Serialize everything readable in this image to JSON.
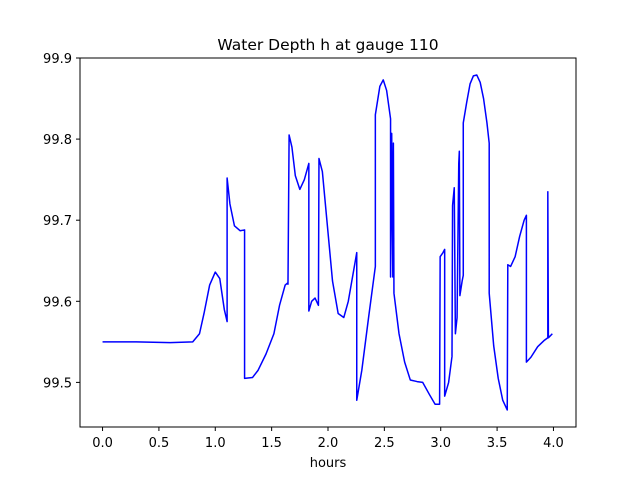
{
  "chart_data": {
    "type": "line",
    "title": "Water Depth h at gauge 110",
    "xlabel": "hours",
    "ylabel": "",
    "xlim": [
      -0.2,
      4.2
    ],
    "ylim": [
      99.445,
      99.9
    ],
    "xticks": [
      0.0,
      0.5,
      1.0,
      1.5,
      2.0,
      2.5,
      3.0,
      3.5,
      4.0
    ],
    "xtick_labels": [
      "0.0",
      "0.5",
      "1.0",
      "1.5",
      "2.0",
      "2.5",
      "3.0",
      "3.5",
      "4.0"
    ],
    "yticks": [
      99.5,
      99.6,
      99.7,
      99.8,
      99.9
    ],
    "ytick_labels": [
      "99.5",
      "99.6",
      "99.7",
      "99.8",
      "99.9"
    ],
    "grid": false,
    "series": [
      {
        "color": "#0000ff",
        "points": [
          [
            0.0,
            99.55
          ],
          [
            0.3,
            99.55
          ],
          [
            0.6,
            99.549
          ],
          [
            0.8,
            99.55
          ],
          [
            0.86,
            99.56
          ],
          [
            0.9,
            99.585
          ],
          [
            0.95,
            99.62
          ],
          [
            1.0,
            99.636
          ],
          [
            1.04,
            99.628
          ],
          [
            1.08,
            99.59
          ],
          [
            1.105,
            99.575
          ],
          [
            1.105,
            99.752
          ],
          [
            1.13,
            99.72
          ],
          [
            1.17,
            99.693
          ],
          [
            1.22,
            99.687
          ],
          [
            1.26,
            99.688
          ],
          [
            1.26,
            99.505
          ],
          [
            1.33,
            99.506
          ],
          [
            1.38,
            99.515
          ],
          [
            1.45,
            99.535
          ],
          [
            1.52,
            99.56
          ],
          [
            1.57,
            99.595
          ],
          [
            1.62,
            99.62
          ],
          [
            1.645,
            99.623
          ],
          [
            1.645,
            99.621
          ],
          [
            1.655,
            99.805
          ],
          [
            1.68,
            99.79
          ],
          [
            1.71,
            99.755
          ],
          [
            1.75,
            99.738
          ],
          [
            1.79,
            99.75
          ],
          [
            1.83,
            99.77
          ],
          [
            1.83,
            99.588
          ],
          [
            1.855,
            99.6
          ],
          [
            1.885,
            99.604
          ],
          [
            1.915,
            99.595
          ],
          [
            1.92,
            99.776
          ],
          [
            1.95,
            99.76
          ],
          [
            1.99,
            99.7
          ],
          [
            2.04,
            99.625
          ],
          [
            2.09,
            99.585
          ],
          [
            2.14,
            99.58
          ],
          [
            2.18,
            99.6
          ],
          [
            2.23,
            99.64
          ],
          [
            2.255,
            99.66
          ],
          [
            2.255,
            99.478
          ],
          [
            2.3,
            99.515
          ],
          [
            2.36,
            99.58
          ],
          [
            2.42,
            99.643
          ],
          [
            2.42,
            99.83
          ],
          [
            2.46,
            99.865
          ],
          [
            2.49,
            99.873
          ],
          [
            2.52,
            99.86
          ],
          [
            2.555,
            99.825
          ],
          [
            2.555,
            99.63
          ],
          [
            2.565,
            99.807
          ],
          [
            2.575,
            99.63
          ],
          [
            2.58,
            99.795
          ],
          [
            2.585,
            99.61
          ],
          [
            2.63,
            99.56
          ],
          [
            2.68,
            99.525
          ],
          [
            2.73,
            99.503
          ],
          [
            2.79,
            99.501
          ],
          [
            2.84,
            99.5
          ],
          [
            2.9,
            99.485
          ],
          [
            2.95,
            99.473
          ],
          [
            2.99,
            99.473
          ],
          [
            2.995,
            99.655
          ],
          [
            3.02,
            99.66
          ],
          [
            3.035,
            99.664
          ],
          [
            3.035,
            99.483
          ],
          [
            3.07,
            99.5
          ],
          [
            3.1,
            99.532
          ],
          [
            3.105,
            99.718
          ],
          [
            3.12,
            99.74
          ],
          [
            3.13,
            99.56
          ],
          [
            3.145,
            99.58
          ],
          [
            3.16,
            99.77
          ],
          [
            3.165,
            99.785
          ],
          [
            3.17,
            99.607
          ],
          [
            3.19,
            99.625
          ],
          [
            3.2,
            99.632
          ],
          [
            3.2,
            99.82
          ],
          [
            3.23,
            99.845
          ],
          [
            3.26,
            99.868
          ],
          [
            3.29,
            99.878
          ],
          [
            3.32,
            99.879
          ],
          [
            3.35,
            99.87
          ],
          [
            3.38,
            99.85
          ],
          [
            3.41,
            99.82
          ],
          [
            3.43,
            99.795
          ],
          [
            3.43,
            99.61
          ],
          [
            3.47,
            99.545
          ],
          [
            3.51,
            99.505
          ],
          [
            3.55,
            99.478
          ],
          [
            3.59,
            99.466
          ],
          [
            3.595,
            99.645
          ],
          [
            3.62,
            99.643
          ],
          [
            3.66,
            99.655
          ],
          [
            3.7,
            99.68
          ],
          [
            3.74,
            99.7
          ],
          [
            3.76,
            99.706
          ],
          [
            3.76,
            99.525
          ],
          [
            3.8,
            99.531
          ],
          [
            3.86,
            99.544
          ],
          [
            3.92,
            99.552
          ],
          [
            3.95,
            99.555
          ],
          [
            3.95,
            99.735
          ],
          [
            3.955,
            99.555
          ],
          [
            3.99,
            99.56
          ]
        ]
      }
    ]
  }
}
